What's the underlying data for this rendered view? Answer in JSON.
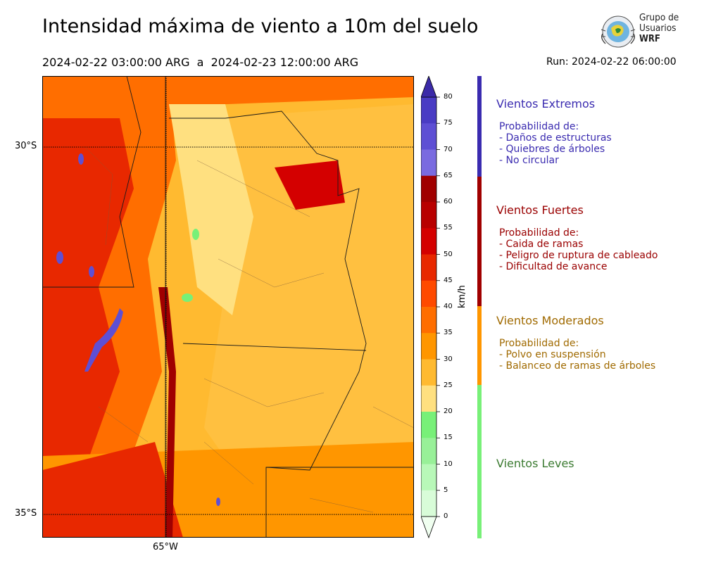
{
  "title": "Intensidad máxima de viento a 10m del suelo",
  "period": "2024-02-22 03:00:00 ARG  a  2024-02-23 12:00:00 ARG",
  "run": "Run: 2024-02-22 06:00:00",
  "logo": {
    "line1": "Grupo de",
    "line2": "Usuarios",
    "line3": "WRF"
  },
  "map": {
    "lat_labels": [
      "30°S",
      "35°S"
    ],
    "lon_labels": [
      "65°W"
    ]
  },
  "colorbar": {
    "unit": "km/h",
    "ticks": [
      "80",
      "75",
      "70",
      "65",
      "60",
      "55",
      "50",
      "45",
      "40",
      "35",
      "30",
      "25",
      "20",
      "15",
      "10",
      "5",
      "0"
    ],
    "colors": [
      "#3b2aa8",
      "#4a3cc4",
      "#5e4fd4",
      "#7a6be0",
      "#a00000",
      "#b80000",
      "#d40000",
      "#e82800",
      "#ff4a00",
      "#ff6e00",
      "#ff9600",
      "#ffba30",
      "#ffe080",
      "#78f078",
      "#98f098",
      "#b8f8b8",
      "#d8fcd8",
      "#f0fff0"
    ]
  },
  "legend": {
    "extremos": {
      "title": "Vientos Extremos",
      "lines": [
        "Probabilidad de:",
        "- Daños de estructuras",
        "- Quiebres de árboles",
        "- No circular"
      ],
      "color": "#3a2bb0"
    },
    "fuertes": {
      "title": "Vientos Fuertes",
      "lines": [
        "Probabilidad de:",
        "- Caida de ramas",
        "- Peligro de ruptura de cableado",
        "- Dificultad de avance"
      ],
      "color": "#9a0000"
    },
    "moderados": {
      "title": "Vientos Moderados",
      "lines": [
        "Probabilidad de:",
        "- Polvo en suspensión",
        "- Balanceo de ramas de árboles"
      ],
      "color": "#a06a00"
    },
    "leves": {
      "title": "Vientos Leves",
      "lines": [],
      "color": "#3a7a30"
    }
  }
}
